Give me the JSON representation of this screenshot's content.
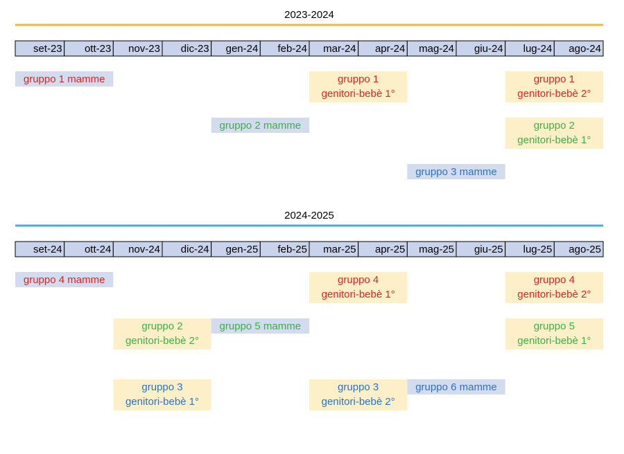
{
  "sections": [
    {
      "title": "2023-2024",
      "months": [
        "set-23",
        "ott-23",
        "nov-23",
        "dic-23",
        "gen-24",
        "feb-24",
        "mar-24",
        "apr-24",
        "mag-24",
        "giu-24",
        "lug-24",
        "ago-24"
      ],
      "blocks": [
        {
          "lines": [
            "gruppo 1 mamme"
          ]
        },
        {
          "lines": [
            "gruppo 1",
            "genitori-bebè 1°"
          ]
        },
        {
          "lines": [
            "gruppo 1",
            "genitori-bebè 2°"
          ]
        },
        {
          "lines": [
            "gruppo 2 mamme"
          ]
        },
        {
          "lines": [
            "gruppo 2",
            "genitori-bebè 1°"
          ]
        },
        {
          "lines": [
            "gruppo 3 mamme"
          ]
        }
      ]
    },
    {
      "title": "2024-2025",
      "months": [
        "set-24",
        "ott-24",
        "nov-24",
        "dic-24",
        "gen-25",
        "feb-25",
        "mar-25",
        "apr-25",
        "mag-25",
        "giu-25",
        "lug-25",
        "ago-25"
      ],
      "blocks": [
        {
          "lines": [
            "gruppo 4 mamme"
          ]
        },
        {
          "lines": [
            "gruppo 4",
            "genitori-bebè 1°"
          ]
        },
        {
          "lines": [
            "gruppo 4",
            "genitori-bebè 2°"
          ]
        },
        {
          "lines": [
            "gruppo 2",
            "genitori-bebè 2°"
          ]
        },
        {
          "lines": [
            "gruppo 5 mamme"
          ]
        },
        {
          "lines": [
            "gruppo 5",
            "genitori-bebè 1°"
          ]
        },
        {
          "lines": [
            "gruppo 3",
            "genitori-bebè 1°"
          ]
        },
        {
          "lines": [
            "gruppo 3",
            "genitori-bebè 2°"
          ]
        },
        {
          "lines": [
            "gruppo 6 mamme"
          ]
        }
      ]
    }
  ]
}
